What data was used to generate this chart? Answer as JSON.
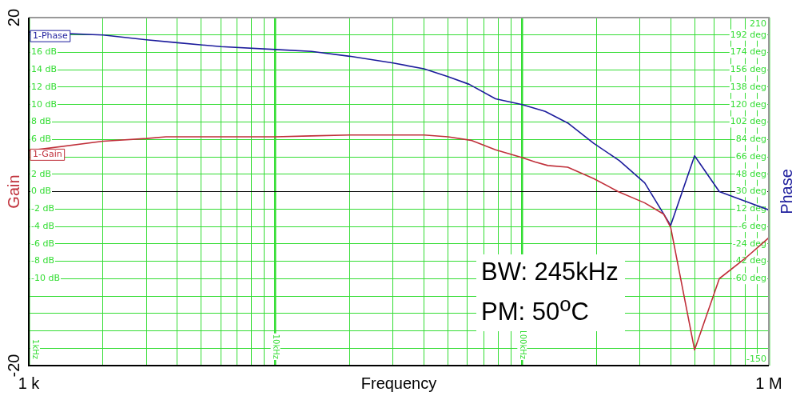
{
  "chart_data": {
    "type": "line",
    "xlabel": "Frequency",
    "ylabel": "Gain",
    "y2label": "Phase",
    "log": "x",
    "grid": true,
    "xlim": [
      1000,
      1000000
    ],
    "xticks": [
      {
        "value": 1000,
        "label": "1 k"
      },
      {
        "value": 2000,
        "label": null
      },
      {
        "value": 3000,
        "label": null
      },
      {
        "value": 4000,
        "label": null
      },
      {
        "value": 5000,
        "label": null
      },
      {
        "value": 6000,
        "label": null
      },
      {
        "value": 7000,
        "label": null
      },
      {
        "value": 8000,
        "label": null
      },
      {
        "value": 9000,
        "label": null
      },
      {
        "value": 10000,
        "label": null
      },
      {
        "value": 20000,
        "label": null
      },
      {
        "value": 30000,
        "label": null
      },
      {
        "value": 40000,
        "label": null
      },
      {
        "value": 50000,
        "label": null
      },
      {
        "value": 60000,
        "label": null
      },
      {
        "value": 70000,
        "label": null
      },
      {
        "value": 80000,
        "label": null
      },
      {
        "value": 90000,
        "label": null
      },
      {
        "value": 100000,
        "label": null
      },
      {
        "value": 200000,
        "label": null
      },
      {
        "value": 300000,
        "label": null
      },
      {
        "value": 400000,
        "label": null
      },
      {
        "value": 500000,
        "label": null
      },
      {
        "value": 600000,
        "label": null
      },
      {
        "value": 700000,
        "label": null
      },
      {
        "value": 800000,
        "label": null
      },
      {
        "value": 900000,
        "label": null
      },
      {
        "value": 1000000,
        "label": "1 M"
      }
    ],
    "ylim": [
      -20,
      20
    ],
    "y3lim": [
      -20,
      20
    ],
    "y3ticks": [
      -20,
      20
    ],
    "yticks": [
      {
        "value": -20,
        "label": null
      },
      {
        "value": -18,
        "label": null
      },
      {
        "value": -16,
        "label": null
      },
      {
        "value": -14,
        "label": null
      },
      {
        "value": -12,
        "label": null
      },
      {
        "value": -10,
        "label": "-10 dB"
      },
      {
        "value": -8,
        "label": "-8 dB"
      },
      {
        "value": -6,
        "label": "-6 dB"
      },
      {
        "value": -4,
        "label": "-4 dB"
      },
      {
        "value": -2,
        "label": "-2 dB"
      },
      {
        "value": 0,
        "label": "0 dB"
      },
      {
        "value": 2,
        "label": "2 dB"
      },
      {
        "value": 4,
        "label": null
      },
      {
        "value": 6,
        "label": "6 dB"
      },
      {
        "value": 8,
        "label": "8 dB"
      },
      {
        "value": 10,
        "label": "10 dB"
      },
      {
        "value": 12,
        "label": "12 dB"
      },
      {
        "value": 14,
        "label": "14 dB"
      },
      {
        "value": 16,
        "label": "16 dB"
      },
      {
        "value": 18,
        "label": null
      },
      {
        "value": 20,
        "label": null
      }
    ],
    "y2lim": [
      -150,
      210
    ],
    "y2ticks": [
      {
        "value": -150,
        "label": "-150"
      },
      {
        "value": -132,
        "label": null
      },
      {
        "value": -114,
        "label": null
      },
      {
        "value": -96,
        "label": null
      },
      {
        "value": -78,
        "label": null
      },
      {
        "value": -60,
        "label": "-60 deg"
      },
      {
        "value": -42,
        "label": "-42 deg"
      },
      {
        "value": -24,
        "label": "-24 deg"
      },
      {
        "value": -6,
        "label": "-6 deg"
      },
      {
        "value": 12,
        "label": "12 deg"
      },
      {
        "value": 30,
        "label": "30 deg"
      },
      {
        "value": 48,
        "label": "48 deg"
      },
      {
        "value": 66,
        "label": "66 deg"
      },
      {
        "value": 84,
        "label": "84 deg"
      },
      {
        "value": 102,
        "label": "102 deg"
      },
      {
        "value": 120,
        "label": "120 deg"
      },
      {
        "value": 138,
        "label": "138 deg"
      },
      {
        "value": 156,
        "label": "156 deg"
      },
      {
        "value": 174,
        "label": "174 deg"
      },
      {
        "value": 192,
        "label": "192 deg"
      },
      {
        "value": 210,
        "label": "210"
      }
    ],
    "series": [
      {
        "name": "1-Gain",
        "color": "#c0303a",
        "x": [
          1000,
          2000,
          3000,
          3600,
          6000,
          10000,
          14000,
          20000,
          30000,
          40000,
          50000,
          62000,
          78000,
          100000,
          113000,
          127000,
          153000,
          195000,
          245000,
          314000,
          375000,
          400000,
          500000,
          630000,
          800000,
          1000000
        ],
        "values": [
          4.7,
          5.8,
          6.1,
          6.3,
          6.3,
          6.3,
          6.4,
          6.5,
          6.5,
          6.5,
          6.3,
          5.9,
          4.8,
          3.9,
          3.4,
          3.0,
          2.8,
          1.5,
          0,
          -1.3,
          -2.6,
          -4.1,
          -18.2,
          -10,
          -7.7,
          -5.3
        ]
      },
      {
        "name": "1-Phase",
        "color": "#1c1c9c",
        "axis": "y2",
        "x": [
          1000,
          2000,
          3000,
          4000,
          6000,
          10000,
          14000,
          20000,
          30000,
          40000,
          50000,
          61000,
          78000,
          100000,
          124000,
          153000,
          195000,
          248000,
          314000,
          400000,
          500000,
          630000,
          1000000
        ],
        "values": [
          195,
          192,
          187,
          184,
          180,
          177,
          175,
          170,
          163,
          157,
          149,
          141,
          126,
          120,
          113,
          101,
          80,
          62,
          39,
          -5,
          67,
          30,
          11
        ]
      }
    ],
    "ref_lines": [
      {
        "axis": "y",
        "value": 0,
        "color": "#000000"
      }
    ],
    "annotations": [
      "1kHz",
      "10kHz",
      "100kHz",
      "BW: 245kHz",
      "PM: 50$^{o}$C"
    ]
  }
}
